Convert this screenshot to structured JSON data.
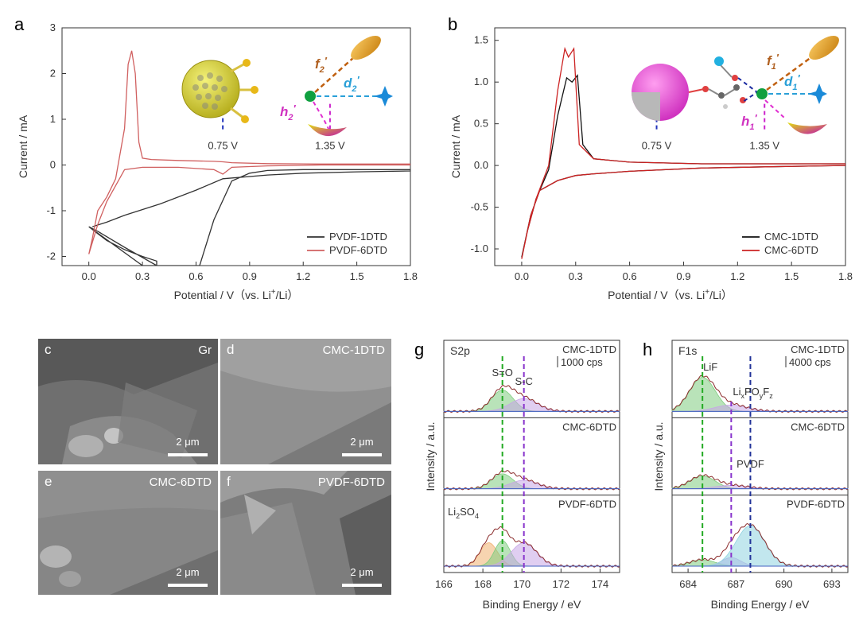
{
  "chart_data": [
    {
      "panel": "a",
      "type": "line",
      "xlabel": "Potential / V（vs. Li",
      "xlabel_sup": "+",
      "xlabel_end": "/Li）",
      "ylabel": "Current / mA",
      "xlim": [
        -0.15,
        1.8
      ],
      "ylim": [
        -2.2,
        3.0
      ],
      "xticks": [
        "0.0",
        "0.3",
        "0.6",
        "0.9",
        "1.2",
        "1.5",
        "1.8"
      ],
      "yticks": [
        "-2",
        "-1",
        "0",
        "1",
        "2",
        "3"
      ],
      "markers": [
        {
          "x": 0.75,
          "label": "0.75 V",
          "color": "#2233bb"
        },
        {
          "x": 1.35,
          "label": "1.35 V",
          "color": "#cc22cc"
        }
      ],
      "series": [
        {
          "name": "PVDF-1DTD",
          "color": "#333333",
          "x": [
            0.0,
            0.05,
            0.1,
            0.2,
            0.3,
            0.38,
            0.38,
            0.2,
            0.05,
            0.0,
            0.3,
            0.5,
            0.62,
            0.7,
            0.8,
            0.9,
            1.0,
            1.2,
            1.5,
            1.8,
            1.8,
            1.5,
            1.2,
            1.0,
            0.75,
            0.6,
            0.4,
            0.2,
            0.1,
            0.02
          ],
          "y": [
            -1.35,
            -1.5,
            -1.65,
            -1.85,
            -2.0,
            -2.1,
            -2.2,
            -1.8,
            -1.45,
            -1.35,
            -2.2,
            -2.2,
            -2.2,
            -1.2,
            -0.35,
            -0.18,
            -0.12,
            -0.1,
            -0.1,
            -0.1,
            -0.13,
            -0.15,
            -0.18,
            -0.22,
            -0.3,
            -0.55,
            -0.85,
            -1.1,
            -1.25,
            -1.35
          ]
        },
        {
          "name": "PVDF-6DTD",
          "color": "#d06060",
          "x": [
            0.0,
            0.02,
            0.05,
            0.1,
            0.15,
            0.2,
            0.22,
            0.24,
            0.26,
            0.28,
            0.3,
            0.35,
            0.5,
            0.7,
            0.75,
            0.8,
            1.0,
            1.3,
            1.8,
            1.8,
            1.3,
            1.0,
            0.8,
            0.75,
            0.7,
            0.5,
            0.3,
            0.2,
            0.1,
            0.05,
            0.0
          ],
          "y": [
            -1.95,
            -1.6,
            -1.0,
            -0.7,
            -0.3,
            0.8,
            2.2,
            2.5,
            2.0,
            0.5,
            0.15,
            0.12,
            0.1,
            0.08,
            0.07,
            0.05,
            0.03,
            0.02,
            0.02,
            0.0,
            0.0,
            -0.02,
            -0.05,
            -0.2,
            -0.1,
            -0.05,
            -0.05,
            -0.1,
            -0.8,
            -1.3,
            -1.95
          ]
        }
      ]
    },
    {
      "panel": "b",
      "type": "line",
      "xlabel": "Potential / V（vs. Li",
      "xlabel_sup": "+",
      "xlabel_end": "/Li）",
      "ylabel": "Current / mA",
      "xlim": [
        -0.15,
        1.8
      ],
      "ylim": [
        -1.2,
        1.65
      ],
      "xticks": [
        "0.0",
        "0.3",
        "0.6",
        "0.9",
        "1.2",
        "1.5",
        "1.8"
      ],
      "yticks": [
        "-1.0",
        "-0.5",
        "0.0",
        "0.5",
        "1.0",
        "1.5"
      ],
      "markers": [
        {
          "x": 0.75,
          "label": "0.75 V",
          "color": "#2233bb"
        },
        {
          "x": 1.35,
          "label": "1.35 V",
          "color": "#cc22cc"
        }
      ],
      "series": [
        {
          "name": "CMC-1DTD",
          "color": "#111111",
          "x": [
            0.0,
            0.03,
            0.08,
            0.15,
            0.2,
            0.25,
            0.28,
            0.31,
            0.34,
            0.4,
            0.6,
            1.0,
            1.5,
            1.8,
            1.8,
            1.5,
            1.0,
            0.6,
            0.4,
            0.3,
            0.2,
            0.1,
            0.05,
            0.0
          ],
          "y": [
            -1.1,
            -0.8,
            -0.4,
            -0.05,
            0.6,
            1.05,
            1.0,
            1.08,
            0.25,
            0.08,
            0.04,
            0.02,
            0.02,
            0.02,
            0.0,
            -0.01,
            -0.03,
            -0.07,
            -0.1,
            -0.12,
            -0.18,
            -0.3,
            -0.6,
            -1.1
          ]
        },
        {
          "name": "CMC-6DTD",
          "color": "#cc2222",
          "x": [
            0.0,
            0.03,
            0.08,
            0.15,
            0.2,
            0.24,
            0.26,
            0.29,
            0.32,
            0.4,
            0.6,
            1.0,
            1.5,
            1.8,
            1.8,
            1.5,
            1.0,
            0.6,
            0.4,
            0.3,
            0.2,
            0.1,
            0.05,
            0.0
          ],
          "y": [
            -1.12,
            -0.8,
            -0.4,
            0.0,
            0.9,
            1.4,
            1.3,
            1.4,
            0.25,
            0.08,
            0.04,
            0.02,
            0.02,
            0.02,
            0.0,
            -0.01,
            -0.03,
            -0.07,
            -0.1,
            -0.12,
            -0.18,
            -0.3,
            -0.6,
            -1.12
          ]
        }
      ]
    },
    {
      "panel": "g",
      "type": "area",
      "title": "S2p",
      "xlabel": "Binding Energy / eV",
      "ylabel": "Intensity / a.u.",
      "xlim": [
        166,
        175
      ],
      "xticks": [
        "166",
        "168",
        "170",
        "172",
        "174"
      ],
      "scale_label": "1000 cps",
      "peaks": [
        {
          "label": "S=O",
          "x": 169.0,
          "color": "#22aa22"
        },
        {
          "label": "S-C",
          "x": 170.1,
          "color": "#8833cc"
        }
      ],
      "extra_label": {
        "text": "Li",
        "sub1": "2",
        "mid": "SO",
        "sub2": "4",
        "color": "#e08a20"
      },
      "subpanels": [
        {
          "name": "CMC-1DTD",
          "components": [
            {
              "center": 169.0,
              "height": 0.5,
              "width": 0.55,
              "color": "#7fcc7f"
            },
            {
              "center": 170.1,
              "height": 0.3,
              "width": 0.7,
              "color": "#c7a6e6"
            }
          ]
        },
        {
          "name": "CMC-6DTD",
          "components": [
            {
              "center": 169.0,
              "height": 0.35,
              "width": 0.55,
              "color": "#7fcc7f"
            },
            {
              "center": 170.1,
              "height": 0.2,
              "width": 0.7,
              "color": "#c7a6e6"
            }
          ]
        },
        {
          "name": "PVDF-6DTD",
          "components": [
            {
              "center": 168.3,
              "height": 0.55,
              "width": 0.45,
              "color": "#f0b070"
            },
            {
              "center": 169.0,
              "height": 0.6,
              "width": 0.4,
              "color": "#7fcc7f"
            },
            {
              "center": 170.1,
              "height": 0.55,
              "width": 0.65,
              "color": "#c7a6e6"
            }
          ]
        }
      ]
    },
    {
      "panel": "h",
      "type": "area",
      "title": "F1s",
      "xlabel": "Binding Energy / eV",
      "ylabel": "Intensity / a.u.",
      "xlim": [
        683,
        694
      ],
      "xticks": [
        "684",
        "687",
        "690",
        "693"
      ],
      "scale_label": "4000 cps",
      "peaks": [
        {
          "label": "LiF",
          "x": 684.9,
          "color": "#22aa22"
        },
        {
          "label": "PVDF",
          "x": 687.9,
          "color": "#223399"
        }
      ],
      "lipofz": {
        "text": "Li",
        "s1": "x",
        "m1": "PO",
        "s2": "y",
        "m2": "F",
        "s3": "z",
        "x": 686.7,
        "color": "#8833cc"
      },
      "subpanels": [
        {
          "name": "CMC-1DTD",
          "components": [
            {
              "center": 684.9,
              "height": 0.8,
              "width": 0.8,
              "color": "#7fcc7f"
            },
            {
              "center": 686.7,
              "height": 0.15,
              "width": 1.0,
              "color": "#c7a6e6"
            }
          ]
        },
        {
          "name": "CMC-6DTD",
          "components": [
            {
              "center": 684.9,
              "height": 0.3,
              "width": 0.8,
              "color": "#7fcc7f"
            },
            {
              "center": 686.7,
              "height": 0.08,
              "width": 1.0,
              "color": "#c7a6e6"
            }
          ]
        },
        {
          "name": "PVDF-6DTD",
          "components": [
            {
              "center": 684.9,
              "height": 0.15,
              "width": 0.8,
              "color": "#7fcc7f"
            },
            {
              "center": 686.7,
              "height": 0.2,
              "width": 0.6,
              "color": "#c7a6e6"
            },
            {
              "center": 687.9,
              "height": 0.95,
              "width": 0.9,
              "color": "#8fd3e0"
            }
          ]
        }
      ]
    }
  ],
  "panel_letters": {
    "a": "a",
    "b": "b",
    "c": "c",
    "d": "d",
    "e": "e",
    "f": "f",
    "g": "g",
    "h": "h"
  },
  "schematic_a": {
    "f": "f",
    "f_sub": "2",
    "d": "d",
    "d_sub": "2",
    "h": "h",
    "h_sub": "2",
    "prime": "′"
  },
  "schematic_b": {
    "f": "f",
    "f_sub": "1",
    "d": "d",
    "d_sub": "1",
    "h": "h",
    "h_sub": "1",
    "prime": "′"
  },
  "sem": [
    {
      "letter": "c",
      "tag": "Gr",
      "scalebar": "2 μm",
      "shade": "#7a7a7a"
    },
    {
      "letter": "d",
      "tag": "CMC-1DTD",
      "scalebar": "2 μm",
      "shade": "#9a9a9a"
    },
    {
      "letter": "e",
      "tag": "CMC-6DTD",
      "scalebar": "2 μm",
      "shade": "#8c8c8c"
    },
    {
      "letter": "f",
      "tag": "PVDF-6DTD",
      "scalebar": "2 μm",
      "shade": "#8a8a8a"
    }
  ]
}
